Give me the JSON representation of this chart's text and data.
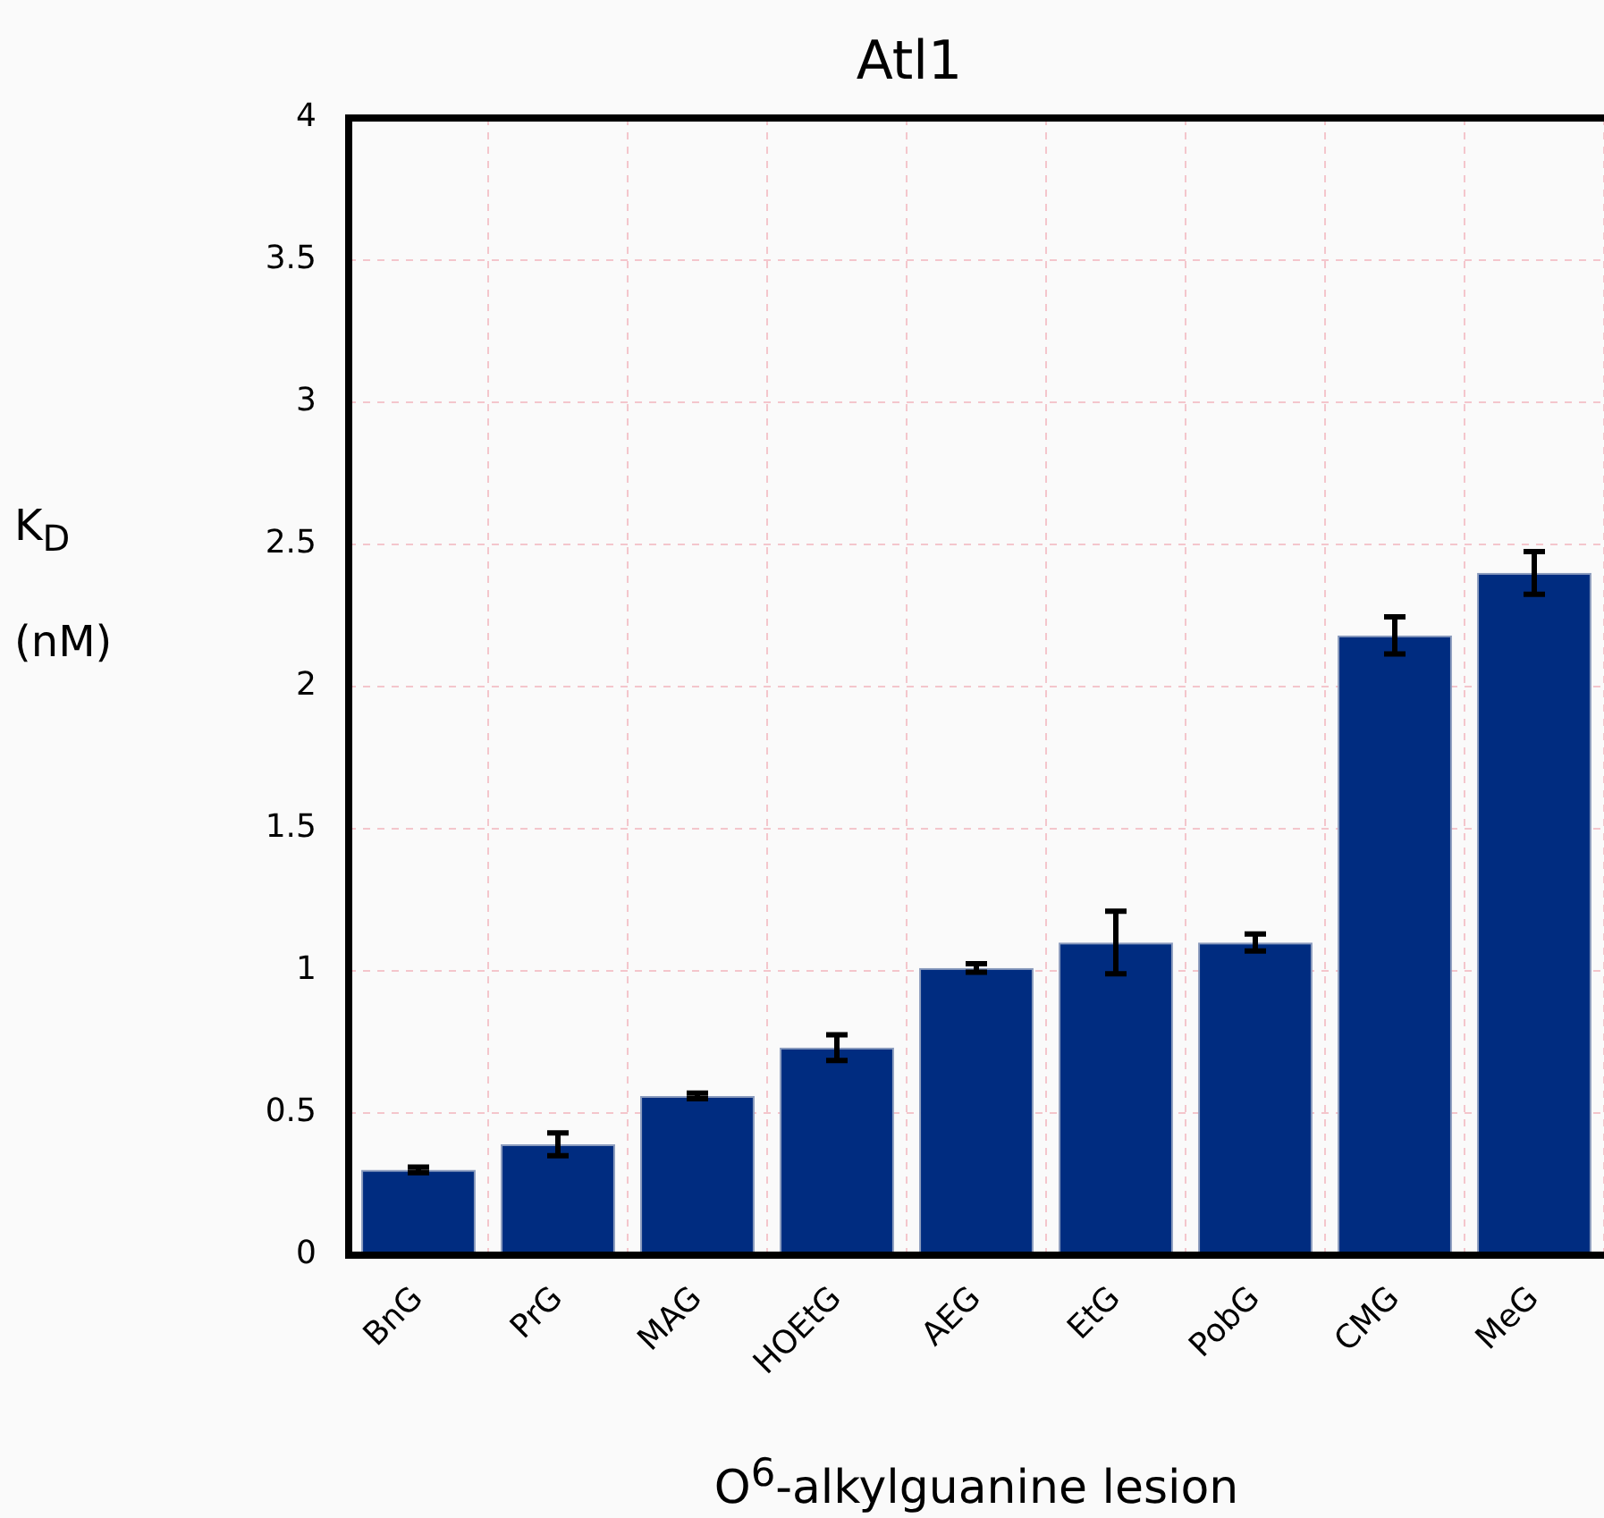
{
  "chart_data": {
    "type": "bar",
    "title": "Atl1",
    "xlabel": "O$^{6}$-alkylguanine lesion",
    "ylabel": "K$_{D}$ (nM)",
    "categories": [
      "BnG",
      "PrG",
      "MAG",
      "HOEtG",
      "AEG",
      "EtG",
      "PobG",
      "CMG",
      "MeG"
    ],
    "values": [
      0.3,
      0.39,
      0.56,
      0.73,
      1.01,
      1.1,
      1.1,
      2.18,
      2.4
    ],
    "errors": [
      0.01,
      0.04,
      0.01,
      0.045,
      0.015,
      0.11,
      0.03,
      0.065,
      0.075
    ],
    "color": "#002c80",
    "ylim": [
      0,
      4
    ],
    "yticks": [
      0,
      0.5,
      1,
      1.5,
      2,
      2.5,
      3,
      3.5,
      4
    ],
    "grid": true,
    "legend": false
  }
}
